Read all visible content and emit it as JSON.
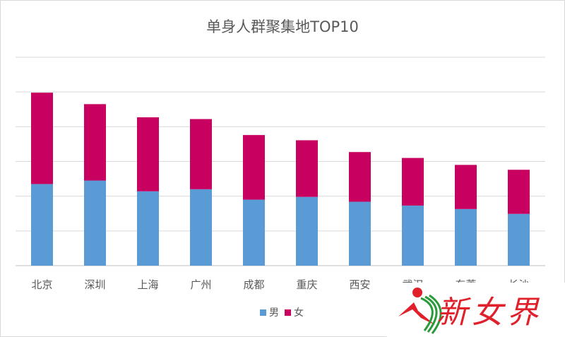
{
  "chart_data": {
    "type": "bar",
    "stacked": true,
    "title": "单身人群聚集地TOP10",
    "xlabel": "",
    "ylabel": "",
    "categories": [
      "北京",
      "深圳",
      "上海",
      "广州",
      "成都",
      "重庆",
      "西安",
      "武汉",
      "东莞",
      "长沙"
    ],
    "series": [
      {
        "name": "男",
        "color": "#5b9bd5",
        "values": [
          2.35,
          2.45,
          2.14,
          2.2,
          1.9,
          1.98,
          1.84,
          1.73,
          1.63,
          1.49
        ]
      },
      {
        "name": "女",
        "color": "#c8005f",
        "values": [
          2.63,
          2.2,
          2.13,
          2.02,
          1.86,
          1.63,
          1.43,
          1.37,
          1.27,
          1.27
        ]
      }
    ],
    "ylim": [
      0,
      6
    ],
    "grid": true,
    "y_tick_labels_shown": false,
    "legend": "bottom"
  },
  "watermark": {
    "text": "新女界"
  }
}
